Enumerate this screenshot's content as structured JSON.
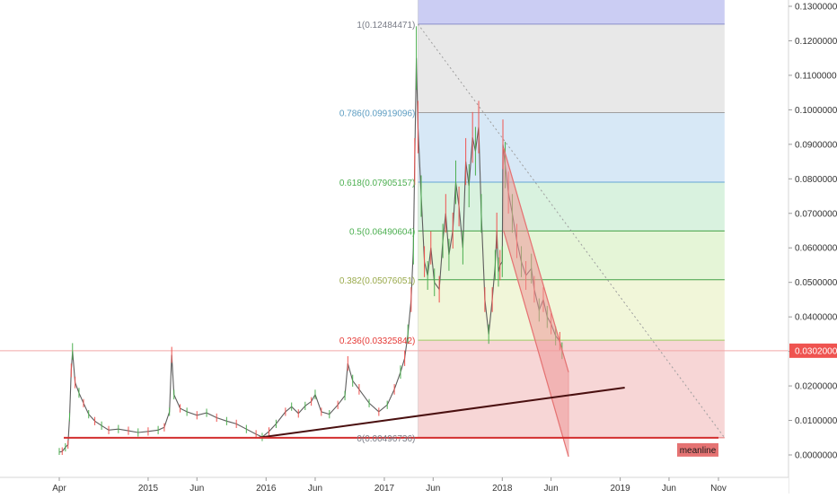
{
  "chart_data": {
    "type": "line",
    "subtype": "candlestick-price-chart-with-fibonacci-retracement",
    "x_axis": {
      "labels": [
        "Apr",
        "2015",
        "Jun",
        "2016",
        "Jun",
        "2017",
        "Jun",
        "2018",
        "Jun",
        "2019",
        "Jun",
        "Nov"
      ],
      "range": [
        "2014-04",
        "2019-11"
      ]
    },
    "y_axis": {
      "position": "right",
      "ticks": [
        "0.13000000",
        "0.12000000",
        "0.11000000",
        "0.10000000",
        "0.09000000",
        "0.08000000",
        "0.07000000",
        "0.06000000",
        "0.05000000",
        "0.04000000",
        "0.03000000",
        "0.02000000",
        "0.01000000",
        "0.00000000"
      ],
      "tick_values": [
        0.13,
        0.12,
        0.11,
        0.1,
        0.09,
        0.08,
        0.07,
        0.06,
        0.05,
        0.04,
        0.03,
        0.02,
        0.01,
        0.0
      ],
      "range": [
        -0.0072,
        0.1318
      ]
    },
    "current_price": {
      "value": 0.03020006,
      "label": "0.03020006"
    },
    "price_series": {
      "name": "",
      "points": [
        [
          "2014-04-01",
          0.0008
        ],
        [
          "2014-04-10",
          0.001
        ],
        [
          "2014-04-20",
          0.0022
        ],
        [
          "2014-04-28",
          0.003
        ],
        [
          "2014-05-03",
          0.011
        ],
        [
          "2014-05-08",
          0.0245
        ],
        [
          "2014-05-12",
          0.03
        ],
        [
          "2014-05-20",
          0.021
        ],
        [
          "2014-06-01",
          0.018
        ],
        [
          "2014-06-15",
          0.015
        ],
        [
          "2014-07-01",
          0.0118
        ],
        [
          "2014-07-20",
          0.0098
        ],
        [
          "2014-08-10",
          0.0085
        ],
        [
          "2014-09-01",
          0.0072
        ],
        [
          "2014-10-01",
          0.0075
        ],
        [
          "2014-11-01",
          0.007
        ],
        [
          "2014-12-01",
          0.0065
        ],
        [
          "2015-01-01",
          0.0068
        ],
        [
          "2015-02-01",
          0.0072
        ],
        [
          "2015-02-20",
          0.008
        ],
        [
          "2015-03-08",
          0.0125
        ],
        [
          "2015-03-15",
          0.029
        ],
        [
          "2015-03-22",
          0.0175
        ],
        [
          "2015-04-10",
          0.0135
        ],
        [
          "2015-05-01",
          0.0125
        ],
        [
          "2015-06-01",
          0.0115
        ],
        [
          "2015-07-01",
          0.0122
        ],
        [
          "2015-08-01",
          0.0108
        ],
        [
          "2015-09-01",
          0.0098
        ],
        [
          "2015-10-01",
          0.009
        ],
        [
          "2015-11-01",
          0.0075
        ],
        [
          "2015-12-01",
          0.006
        ],
        [
          "2015-12-20",
          0.0052
        ],
        [
          "2016-01-10",
          0.0068
        ],
        [
          "2016-02-01",
          0.009
        ],
        [
          "2016-03-01",
          0.0125
        ],
        [
          "2016-03-20",
          0.014
        ],
        [
          "2016-04-10",
          0.012
        ],
        [
          "2016-05-01",
          0.0142
        ],
        [
          "2016-05-20",
          0.0155
        ],
        [
          "2016-06-01",
          0.0175
        ],
        [
          "2016-06-20",
          0.0125
        ],
        [
          "2016-07-15",
          0.0118
        ],
        [
          "2016-08-10",
          0.0145
        ],
        [
          "2016-09-01",
          0.0172
        ],
        [
          "2016-09-10",
          0.0265
        ],
        [
          "2016-09-25",
          0.0215
        ],
        [
          "2016-10-15",
          0.019
        ],
        [
          "2016-11-15",
          0.015
        ],
        [
          "2016-12-15",
          0.0125
        ],
        [
          "2017-01-10",
          0.0145
        ],
        [
          "2017-02-01",
          0.019
        ],
        [
          "2017-02-20",
          0.024
        ],
        [
          "2017-03-05",
          0.028
        ],
        [
          "2017-03-15",
          0.035
        ],
        [
          "2017-03-25",
          0.045
        ],
        [
          "2017-04-01",
          0.06
        ],
        [
          "2017-04-05",
          0.085
        ],
        [
          "2017-04-10",
          0.115
        ],
        [
          "2017-04-15",
          0.095
        ],
        [
          "2017-04-25",
          0.075
        ],
        [
          "2017-05-05",
          0.056
        ],
        [
          "2017-05-15",
          0.052
        ],
        [
          "2017-05-25",
          0.06
        ],
        [
          "2017-06-05",
          0.05
        ],
        [
          "2017-06-20",
          0.048
        ],
        [
          "2017-07-01",
          0.062
        ],
        [
          "2017-07-10",
          0.07
        ],
        [
          "2017-07-20",
          0.058
        ],
        [
          "2017-08-01",
          0.065
        ],
        [
          "2017-08-10",
          0.079
        ],
        [
          "2017-08-20",
          0.072
        ],
        [
          "2017-09-01",
          0.06
        ],
        [
          "2017-09-10",
          0.085
        ],
        [
          "2017-09-20",
          0.078
        ],
        [
          "2017-10-01",
          0.092
        ],
        [
          "2017-10-10",
          0.088
        ],
        [
          "2017-10-20",
          0.095
        ],
        [
          "2017-10-28",
          0.07
        ],
        [
          "2017-11-08",
          0.045
        ],
        [
          "2017-11-20",
          0.035
        ],
        [
          "2017-12-01",
          0.045
        ],
        [
          "2017-12-10",
          0.055
        ],
        [
          "2017-12-15",
          0.065
        ],
        [
          "2017-12-20",
          0.053
        ],
        [
          "2017-12-25",
          0.055
        ],
        [
          "2018-01-01",
          0.056
        ],
        [
          "2018-01-03",
          0.09
        ],
        [
          "2018-01-10",
          0.084
        ],
        [
          "2018-01-20",
          0.076
        ],
        [
          "2018-02-01",
          0.07
        ],
        [
          "2018-02-15",
          0.062
        ],
        [
          "2018-03-01",
          0.056
        ],
        [
          "2018-03-15",
          0.052
        ],
        [
          "2018-04-01",
          0.054
        ],
        [
          "2018-04-10",
          0.048
        ],
        [
          "2018-04-25",
          0.042
        ],
        [
          "2018-05-08",
          0.045
        ],
        [
          "2018-05-20",
          0.04
        ],
        [
          "2018-06-01",
          0.038
        ],
        [
          "2018-06-15",
          0.0345
        ],
        [
          "2018-06-28",
          0.033
        ],
        [
          "2018-07-05",
          0.0302
        ]
      ]
    },
    "fibonacci": {
      "levels": [
        {
          "ratio": 1,
          "value": 0.12484471,
          "label": "1(0.12484471)",
          "label_color": "#787b86"
        },
        {
          "ratio": 0.786,
          "value": 0.09919096,
          "label": "0.786(0.09919096)",
          "label_color": "#5b9cc1"
        },
        {
          "ratio": 0.618,
          "value": 0.07905157,
          "label": "0.618(0.07905157)",
          "label_color": "#4caf50"
        },
        {
          "ratio": 0.5,
          "value": 0.06490604,
          "label": "0.5(0.06490604)",
          "label_color": "#4caf50"
        },
        {
          "ratio": 0.382,
          "value": 0.05076051,
          "label": "0.382(0.05076051)",
          "label_color": "#99a94a"
        },
        {
          "ratio": 0.236,
          "value": 0.03325842,
          "label": "0.236(0.03325842)",
          "label_color": "#e53935"
        },
        {
          "ratio": 0,
          "value": 0.00496736,
          "label": "0(0.00496736)",
          "label_color": "#787b86"
        }
      ],
      "x_start": "2017-04-15",
      "x_end": "2019-11-20",
      "band_colors": [
        "#c5c8f2",
        "#e5e5e5",
        "#d3e6f5",
        "#d5f1dc",
        "#e2f4d3",
        "#f0f5d5",
        "#f6d2d2"
      ]
    },
    "channel": {
      "upper": [
        [
          "2018-01-05",
          0.089
        ],
        [
          "2018-07-25",
          0.024
        ]
      ],
      "lower": [
        [
          "2018-01-05",
          0.065
        ],
        [
          "2018-07-25",
          -0.0005
        ]
      ],
      "color": "#e57373"
    },
    "trendline": {
      "points": [
        [
          "2015-12-10",
          0.005
        ],
        [
          "2019-01-15",
          0.0195
        ]
      ],
      "color": "#4a1010"
    },
    "meanline": {
      "y": 0.00496736,
      "x_start": "2014-04-15",
      "x_end": "2019-11-01",
      "label": "meanline",
      "color": "#d32f2f"
    },
    "diagonal": {
      "points": [
        [
          "2017-04-15",
          0.12484471
        ],
        [
          "2019-11-20",
          0.00496736
        ]
      ]
    },
    "grid": false
  }
}
